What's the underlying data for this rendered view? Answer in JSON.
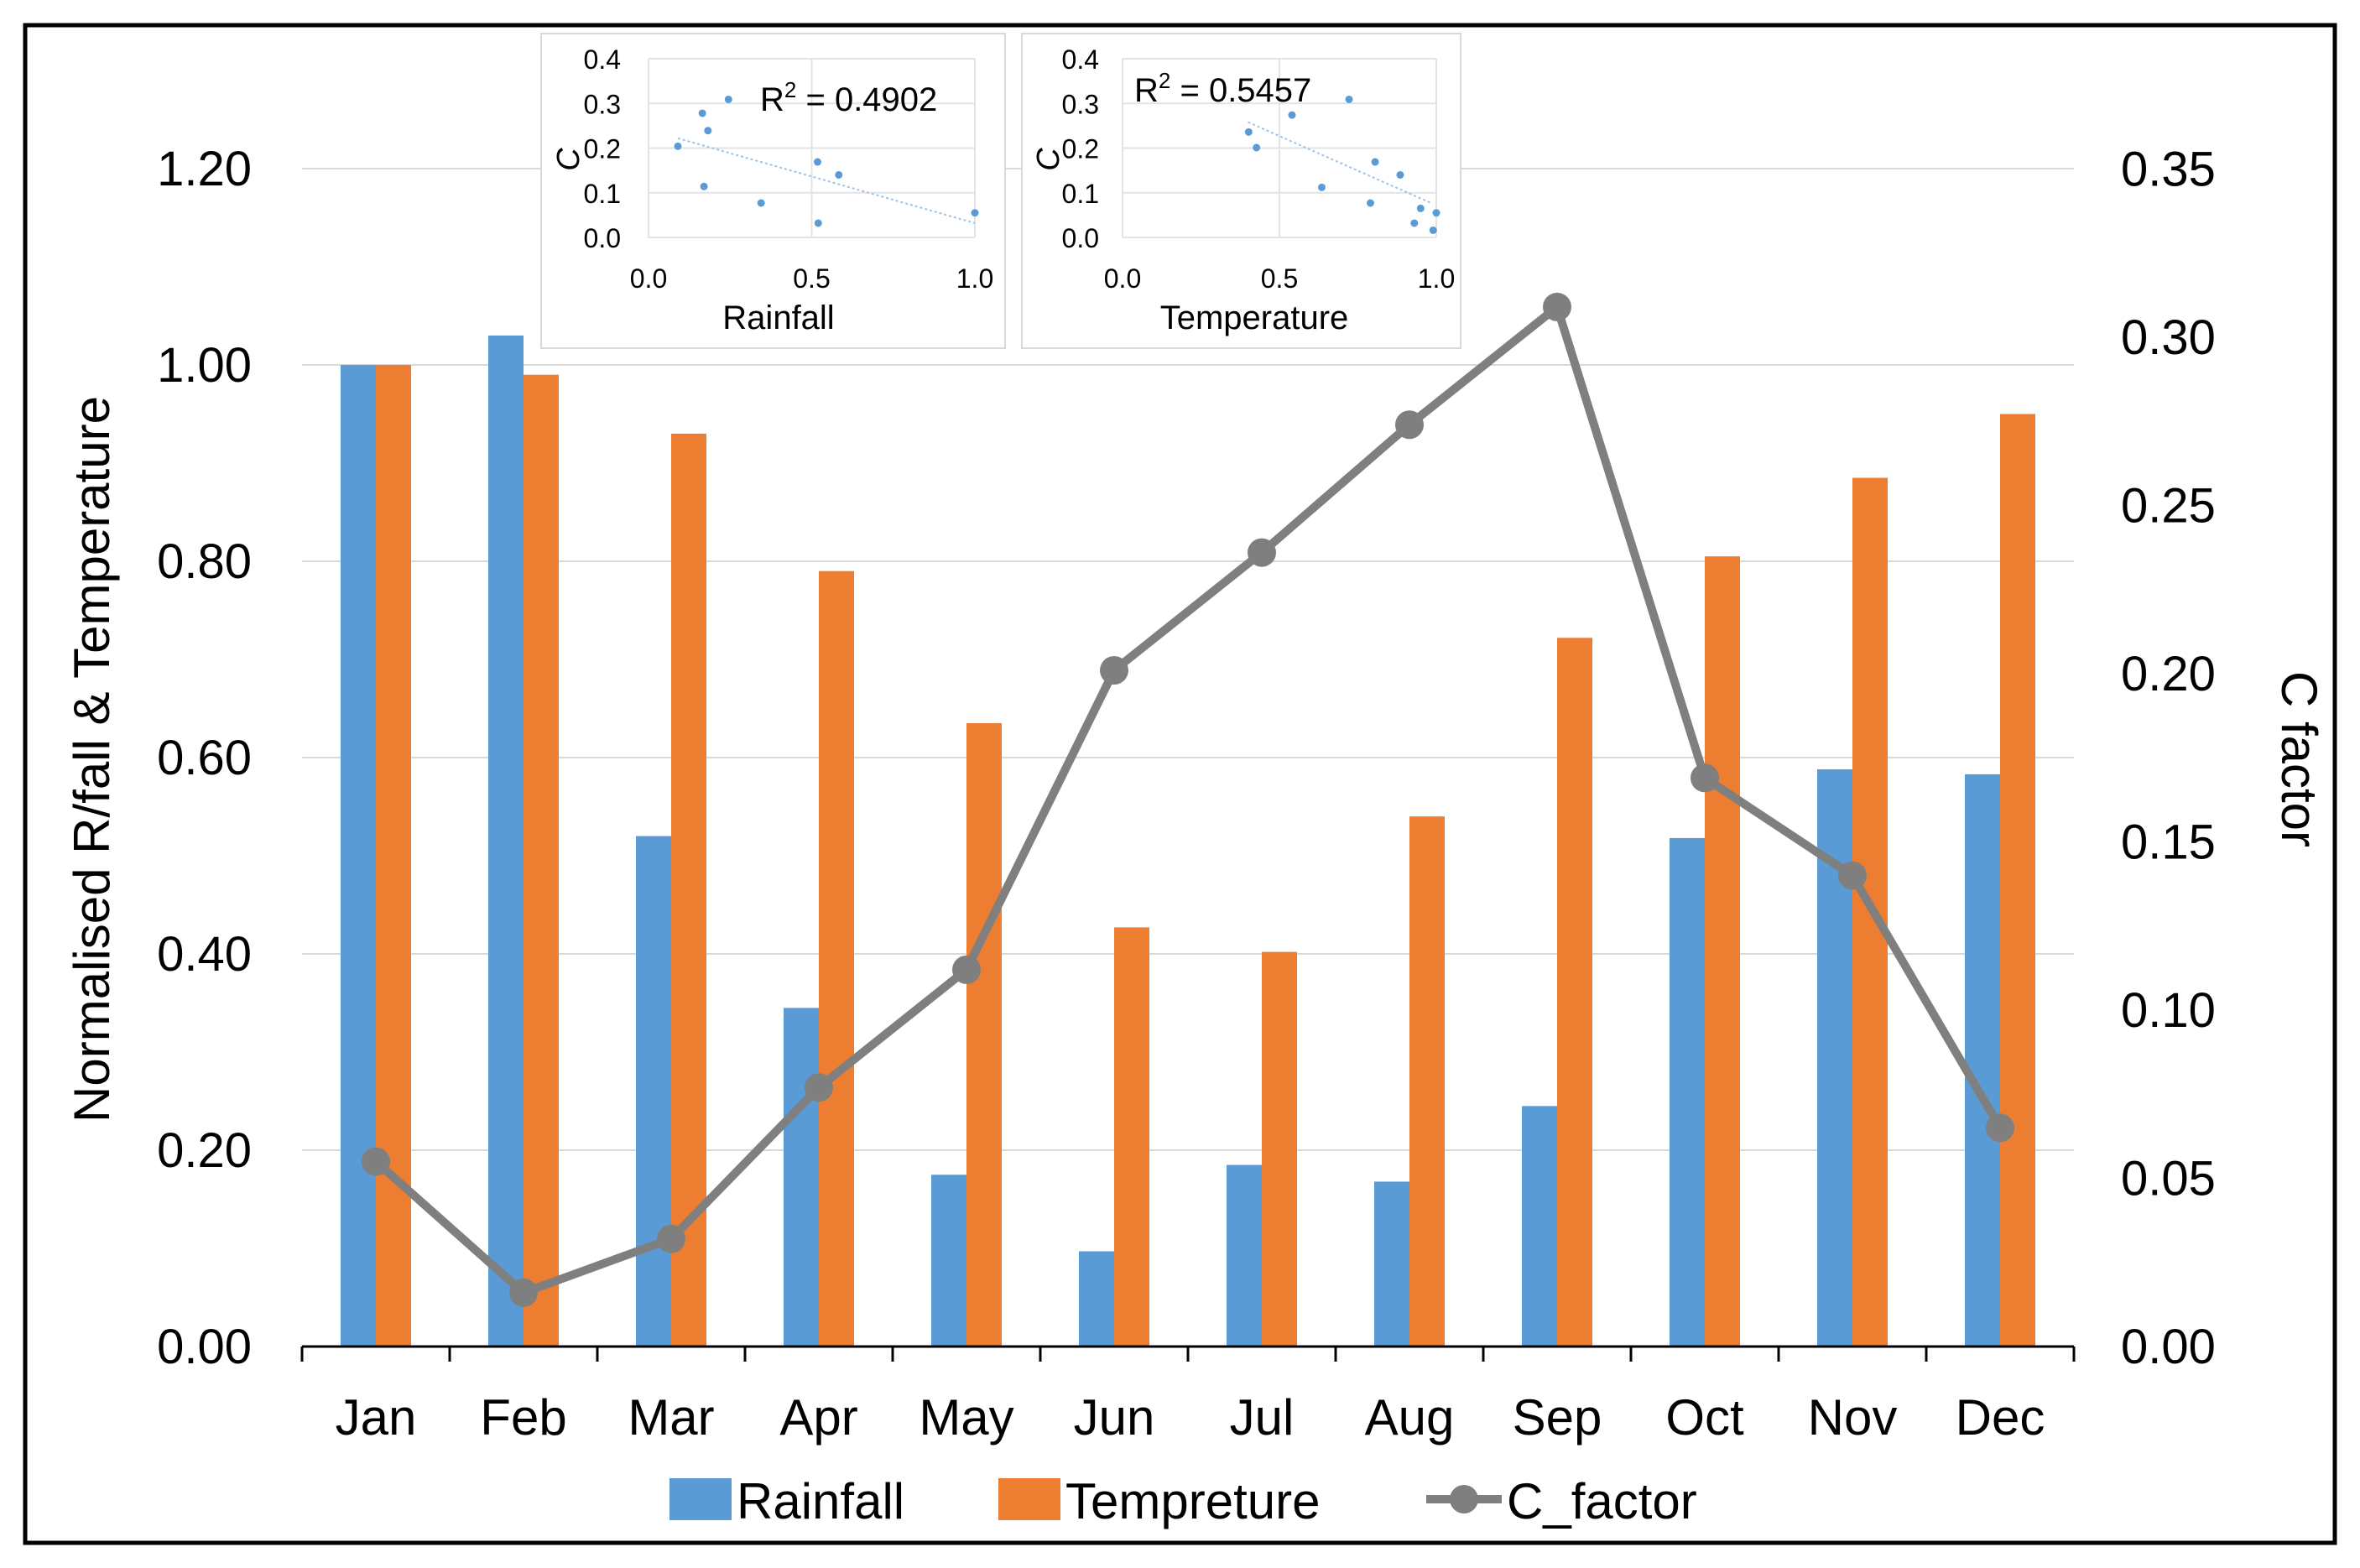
{
  "chart_data": [
    {
      "type": "bar+line",
      "title": "",
      "categories": [
        "Jan",
        "Feb",
        "Mar",
        "Apr",
        "May",
        "Jun",
        "Jul",
        "Aug",
        "Sep",
        "Oct",
        "Nov",
        "Dec"
      ],
      "series": [
        {
          "name": "Rainfall",
          "type": "bar",
          "axis": "left",
          "color": "#5b9bd5",
          "values": [
            1.0,
            1.03,
            0.52,
            0.345,
            0.175,
            0.097,
            0.185,
            0.168,
            0.245,
            0.518,
            0.588,
            0.583
          ]
        },
        {
          "name": "Tempreture",
          "type": "bar",
          "axis": "left",
          "color": "#ed7d31",
          "values": [
            1.0,
            0.99,
            0.93,
            0.79,
            0.635,
            0.427,
            0.402,
            0.54,
            0.722,
            0.805,
            0.885,
            0.95
          ]
        },
        {
          "name": "C_factor",
          "type": "line",
          "axis": "right",
          "color": "#7f7f7f",
          "values": [
            0.055,
            0.016,
            0.032,
            0.077,
            0.112,
            0.201,
            0.236,
            0.274,
            0.309,
            0.169,
            0.14,
            0.065
          ]
        }
      ],
      "ylabel": "Normalised R/fall & Temperature",
      "ylabel_right": "C factor",
      "ylim": [
        0,
        1.3
      ],
      "ylim_right": [
        0,
        0.379
      ],
      "yticks": [
        "0.00",
        "0.20",
        "0.40",
        "0.60",
        "0.80",
        "1.00",
        "1.20"
      ],
      "yticks_right": [
        "0.00",
        "0.05",
        "0.10",
        "0.15",
        "0.20",
        "0.25",
        "0.30",
        "0.35"
      ],
      "legend": [
        "Rainfall",
        "Tempreture",
        "C_factor"
      ],
      "legend_position": "bottom"
    },
    {
      "type": "scatter",
      "xlabel": "Rainfall",
      "ylabel": "C",
      "annotation_base": "R",
      "annotation_sup": "2",
      "annotation_rest": " = 0.4902",
      "xlim": [
        0,
        1
      ],
      "ylim": [
        0,
        0.4
      ],
      "xticks": [
        "0.0",
        "0.5",
        "1.0"
      ],
      "yticks": [
        "0.0",
        "0.1",
        "0.2",
        "0.3",
        "0.4"
      ],
      "trend": [
        [
          0.09,
          0.222
        ],
        [
          1.0,
          0.032
        ]
      ],
      "points": [
        [
          0.09,
          0.204
        ],
        [
          0.165,
          0.278
        ],
        [
          0.17,
          0.114
        ],
        [
          0.182,
          0.239
        ],
        [
          0.245,
          0.309
        ],
        [
          0.345,
          0.077
        ],
        [
          0.518,
          0.169
        ],
        [
          0.52,
          0.032
        ],
        [
          0.583,
          0.14
        ],
        [
          1.0,
          0.055
        ]
      ]
    },
    {
      "type": "scatter",
      "xlabel": "Temperature",
      "ylabel": "C",
      "annotation_base": "R",
      "annotation_sup": "2",
      "annotation_rest": " = 0.5457",
      "xlim": [
        0,
        1
      ],
      "ylim": [
        0,
        0.4
      ],
      "xticks": [
        "0.0",
        "0.5",
        "1.0"
      ],
      "yticks": [
        "0.0",
        "0.1",
        "0.2",
        "0.3",
        "0.4"
      ],
      "trend": [
        [
          0.4,
          0.258
        ],
        [
          0.98,
          0.078
        ]
      ],
      "points": [
        [
          0.402,
          0.236
        ],
        [
          0.427,
          0.201
        ],
        [
          0.54,
          0.274
        ],
        [
          0.635,
          0.112
        ],
        [
          0.722,
          0.309
        ],
        [
          0.79,
          0.077
        ],
        [
          0.805,
          0.169
        ],
        [
          0.885,
          0.14
        ],
        [
          0.93,
          0.032
        ],
        [
          0.95,
          0.065
        ],
        [
          0.99,
          0.016
        ],
        [
          1.0,
          0.055
        ]
      ]
    }
  ]
}
